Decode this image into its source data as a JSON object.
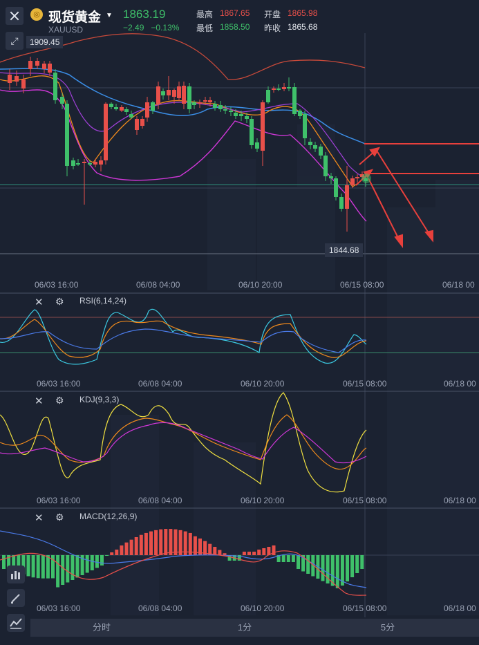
{
  "header": {
    "name": "现货黄金",
    "code": "XAUUSD",
    "price": "1863.19",
    "change": "−2.49",
    "change_pct": "−0.13%",
    "high_label": "最高",
    "high": "1867.65",
    "open_label": "开盘",
    "open": "1865.98",
    "low_label": "最低",
    "low": "1858.50",
    "prev_close_label": "昨收",
    "prev_close": "1865.68"
  },
  "main_chart": {
    "max_label": "1909.45",
    "min_label": "1844.68",
    "x_ticks": [
      "06/03 16:00",
      "06/08 04:00",
      "06/10 20:00",
      "06/15 08:00",
      "06/18 00"
    ]
  },
  "rsi": {
    "title": "RSI(6,14,24)",
    "x_ticks": [
      "06/03 16:00",
      "06/08 04:00",
      "06/10 20:00",
      "06/15 08:00",
      "06/18 00"
    ]
  },
  "kdj": {
    "title": "KDJ(9,3,3)",
    "x_ticks": [
      "06/03 16:00",
      "06/08 04:00",
      "06/10 20:00",
      "06/15 08:00",
      "06/18 00"
    ]
  },
  "macd": {
    "title": "MACD(12,26,9)",
    "x_ticks": [
      "06/03 16:00",
      "06/08 04:00",
      "06/10 20:00",
      "06/15 08:00",
      "06/18 00"
    ]
  },
  "tabs": [
    "分时",
    "1分",
    "5分"
  ],
  "colors": {
    "up": "#e8504a",
    "down": "#3fc06a",
    "bg": "#1b2231",
    "ma_blue": "#3b8fe8",
    "ma_orange": "#f08a1c",
    "ma_magenta": "#d037d8",
    "kdj_yellow": "#f0e040"
  },
  "icons": [
    "close-icon",
    "gold-coin-icon",
    "chevron-down-icon",
    "expand-icon",
    "gear-icon",
    "draw-pen-icon",
    "indicator-icon"
  ]
}
